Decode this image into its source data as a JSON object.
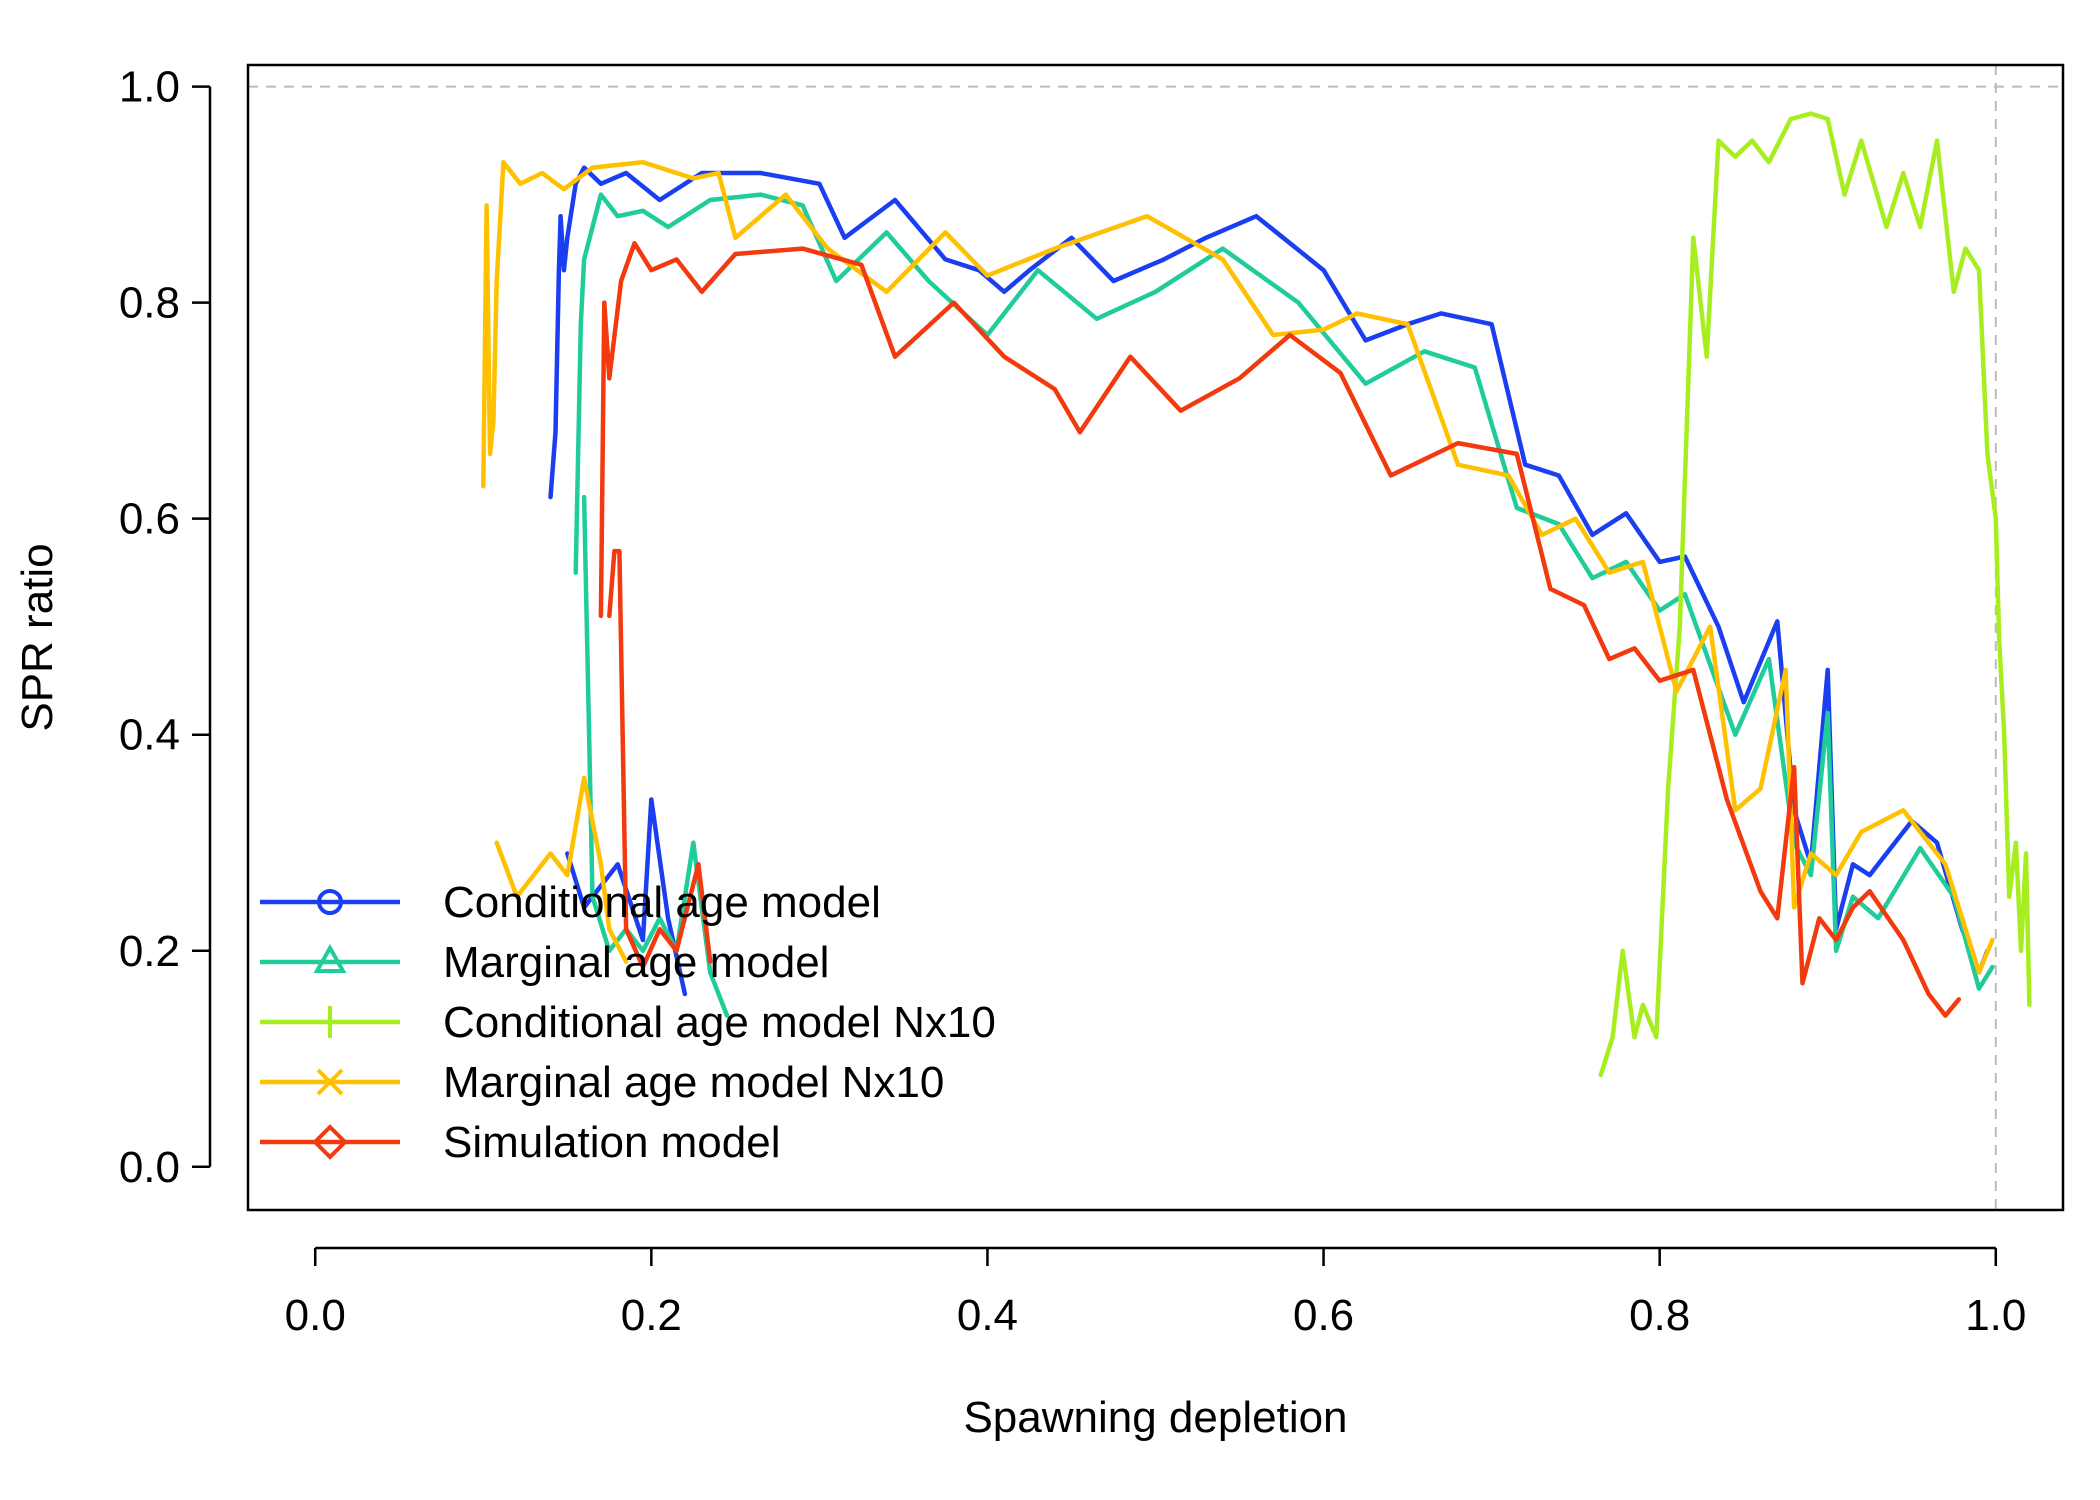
{
  "chart_data": {
    "type": "line",
    "title": "",
    "xlabel": "Spawning depletion",
    "ylabel": "SPR ratio",
    "xlim": [
      -0.04,
      1.04
    ],
    "ylim": [
      -0.04,
      1.02
    ],
    "x_ticks": [
      0.0,
      0.2,
      0.4,
      0.6,
      0.8,
      1.0
    ],
    "x_tick_labels": [
      "0.0",
      "0.2",
      "0.4",
      "0.6",
      "0.8",
      "1.0"
    ],
    "y_ticks": [
      0.0,
      0.2,
      0.4,
      0.6,
      0.8,
      1.0
    ],
    "y_tick_labels": [
      "0.0",
      "0.2",
      "0.4",
      "0.6",
      "0.8",
      "1.0"
    ],
    "reference_lines": {
      "horizontal_y": 1.0,
      "vertical_x": 1.0,
      "style": "dashed",
      "color": "#bbbbbb"
    },
    "legend_position": "bottom-left",
    "series": [
      {
        "name": "Conditional age model",
        "color": "#1a3ef0",
        "marker": "circle",
        "points": [
          [
            0.14,
            0.62
          ],
          [
            0.143,
            0.68
          ],
          [
            0.145,
            0.83
          ],
          [
            0.146,
            0.88
          ],
          [
            0.148,
            0.83
          ],
          [
            0.15,
            0.86
          ],
          [
            0.155,
            0.91
          ],
          [
            0.16,
            0.925
          ],
          [
            0.17,
            0.91
          ],
          [
            0.185,
            0.92
          ],
          [
            0.205,
            0.895
          ],
          [
            0.23,
            0.92
          ],
          [
            0.265,
            0.92
          ],
          [
            0.3,
            0.91
          ],
          [
            0.315,
            0.86
          ],
          [
            0.345,
            0.895
          ],
          [
            0.375,
            0.84
          ],
          [
            0.395,
            0.83
          ],
          [
            0.41,
            0.81
          ],
          [
            0.425,
            0.83
          ],
          [
            0.45,
            0.86
          ],
          [
            0.475,
            0.82
          ],
          [
            0.505,
            0.84
          ],
          [
            0.53,
            0.86
          ],
          [
            0.56,
            0.88
          ],
          [
            0.6,
            0.83
          ],
          [
            0.625,
            0.765
          ],
          [
            0.65,
            0.78
          ],
          [
            0.67,
            0.79
          ],
          [
            0.7,
            0.78
          ],
          [
            0.72,
            0.65
          ],
          [
            0.74,
            0.64
          ],
          [
            0.76,
            0.585
          ],
          [
            0.78,
            0.605
          ],
          [
            0.8,
            0.56
          ],
          [
            0.815,
            0.565
          ],
          [
            0.835,
            0.5
          ],
          [
            0.85,
            0.43
          ],
          [
            0.87,
            0.505
          ],
          [
            0.88,
            0.33
          ],
          [
            0.89,
            0.28
          ],
          [
            0.9,
            0.46
          ],
          [
            0.905,
            0.22
          ],
          [
            0.915,
            0.28
          ],
          [
            0.925,
            0.27
          ],
          [
            0.935,
            0.29
          ],
          [
            0.95,
            0.32
          ],
          [
            0.965,
            0.3
          ],
          [
            0.98,
            0.22
          ],
          [
            0.99,
            0.18
          ],
          [
            0.995,
            0.2
          ]
        ],
        "early_points": [
          [
            0.15,
            0.29
          ],
          [
            0.16,
            0.24
          ],
          [
            0.17,
            0.26
          ],
          [
            0.18,
            0.28
          ],
          [
            0.195,
            0.21
          ],
          [
            0.2,
            0.34
          ],
          [
            0.21,
            0.23
          ],
          [
            0.22,
            0.16
          ]
        ]
      },
      {
        "name": "Marginal age model",
        "color": "#1fcc9a",
        "marker": "triangle",
        "points": [
          [
            0.155,
            0.55
          ],
          [
            0.158,
            0.78
          ],
          [
            0.16,
            0.84
          ],
          [
            0.165,
            0.87
          ],
          [
            0.17,
            0.9
          ],
          [
            0.18,
            0.88
          ],
          [
            0.195,
            0.885
          ],
          [
            0.21,
            0.87
          ],
          [
            0.235,
            0.895
          ],
          [
            0.265,
            0.9
          ],
          [
            0.29,
            0.89
          ],
          [
            0.31,
            0.82
          ],
          [
            0.34,
            0.865
          ],
          [
            0.365,
            0.82
          ],
          [
            0.4,
            0.77
          ],
          [
            0.43,
            0.83
          ],
          [
            0.465,
            0.785
          ],
          [
            0.5,
            0.81
          ],
          [
            0.54,
            0.85
          ],
          [
            0.585,
            0.8
          ],
          [
            0.625,
            0.725
          ],
          [
            0.66,
            0.755
          ],
          [
            0.69,
            0.74
          ],
          [
            0.715,
            0.61
          ],
          [
            0.74,
            0.595
          ],
          [
            0.76,
            0.545
          ],
          [
            0.78,
            0.56
          ],
          [
            0.8,
            0.515
          ],
          [
            0.815,
            0.53
          ],
          [
            0.845,
            0.4
          ],
          [
            0.865,
            0.47
          ],
          [
            0.88,
            0.3
          ],
          [
            0.89,
            0.27
          ],
          [
            0.9,
            0.42
          ],
          [
            0.905,
            0.2
          ],
          [
            0.915,
            0.25
          ],
          [
            0.93,
            0.23
          ],
          [
            0.955,
            0.295
          ],
          [
            0.975,
            0.25
          ],
          [
            0.99,
            0.165
          ],
          [
            0.998,
            0.185
          ]
        ],
        "early_points": [
          [
            0.16,
            0.62
          ],
          [
            0.165,
            0.25
          ],
          [
            0.175,
            0.2
          ],
          [
            0.185,
            0.22
          ],
          [
            0.195,
            0.2
          ],
          [
            0.205,
            0.23
          ],
          [
            0.215,
            0.2
          ],
          [
            0.225,
            0.3
          ],
          [
            0.235,
            0.18
          ],
          [
            0.245,
            0.14
          ]
        ]
      },
      {
        "name": "Conditional age model Nx10",
        "color": "#a6ee20",
        "marker": "plus",
        "points": [
          [
            0.765,
            0.085
          ],
          [
            0.772,
            0.12
          ],
          [
            0.778,
            0.2
          ],
          [
            0.785,
            0.12
          ],
          [
            0.79,
            0.15
          ],
          [
            0.798,
            0.12
          ],
          [
            0.805,
            0.35
          ],
          [
            0.812,
            0.5
          ],
          [
            0.82,
            0.86
          ],
          [
            0.828,
            0.75
          ],
          [
            0.835,
            0.95
          ],
          [
            0.845,
            0.935
          ],
          [
            0.855,
            0.95
          ],
          [
            0.865,
            0.93
          ],
          [
            0.878,
            0.97
          ],
          [
            0.89,
            0.975
          ],
          [
            0.9,
            0.97
          ],
          [
            0.91,
            0.9
          ],
          [
            0.92,
            0.95
          ],
          [
            0.935,
            0.87
          ],
          [
            0.945,
            0.92
          ],
          [
            0.955,
            0.87
          ],
          [
            0.965,
            0.95
          ],
          [
            0.975,
            0.81
          ],
          [
            0.982,
            0.85
          ],
          [
            0.99,
            0.83
          ],
          [
            0.995,
            0.66
          ],
          [
            1.0,
            0.6
          ],
          [
            1.002,
            0.49
          ],
          [
            1.005,
            0.4
          ],
          [
            1.008,
            0.25
          ],
          [
            1.012,
            0.3
          ],
          [
            1.015,
            0.2
          ],
          [
            1.018,
            0.29
          ],
          [
            1.02,
            0.15
          ]
        ]
      },
      {
        "name": "Marginal age model Nx10",
        "color": "#ffc000",
        "marker": "x",
        "points": [
          [
            0.1,
            0.63
          ],
          [
            0.102,
            0.89
          ],
          [
            0.104,
            0.66
          ],
          [
            0.106,
            0.69
          ],
          [
            0.108,
            0.82
          ],
          [
            0.112,
            0.93
          ],
          [
            0.122,
            0.91
          ],
          [
            0.135,
            0.92
          ],
          [
            0.148,
            0.905
          ],
          [
            0.165,
            0.925
          ],
          [
            0.195,
            0.93
          ],
          [
            0.225,
            0.915
          ],
          [
            0.24,
            0.92
          ],
          [
            0.25,
            0.86
          ],
          [
            0.28,
            0.9
          ],
          [
            0.305,
            0.85
          ],
          [
            0.34,
            0.81
          ],
          [
            0.375,
            0.865
          ],
          [
            0.4,
            0.825
          ],
          [
            0.44,
            0.85
          ],
          [
            0.495,
            0.88
          ],
          [
            0.54,
            0.84
          ],
          [
            0.57,
            0.77
          ],
          [
            0.6,
            0.775
          ],
          [
            0.62,
            0.79
          ],
          [
            0.65,
            0.78
          ],
          [
            0.68,
            0.65
          ],
          [
            0.71,
            0.64
          ],
          [
            0.73,
            0.585
          ],
          [
            0.75,
            0.6
          ],
          [
            0.77,
            0.55
          ],
          [
            0.79,
            0.56
          ],
          [
            0.81,
            0.44
          ],
          [
            0.83,
            0.5
          ],
          [
            0.845,
            0.33
          ],
          [
            0.86,
            0.35
          ],
          [
            0.875,
            0.46
          ],
          [
            0.88,
            0.24
          ],
          [
            0.89,
            0.29
          ],
          [
            0.905,
            0.27
          ],
          [
            0.92,
            0.31
          ],
          [
            0.945,
            0.33
          ],
          [
            0.97,
            0.28
          ],
          [
            0.99,
            0.18
          ],
          [
            0.998,
            0.21
          ]
        ],
        "early_points": [
          [
            0.108,
            0.3
          ],
          [
            0.12,
            0.25
          ],
          [
            0.13,
            0.27
          ],
          [
            0.14,
            0.29
          ],
          [
            0.15,
            0.27
          ],
          [
            0.16,
            0.36
          ],
          [
            0.17,
            0.28
          ],
          [
            0.175,
            0.22
          ],
          [
            0.185,
            0.19
          ]
        ]
      },
      {
        "name": "Simulation model",
        "color": "#f23a0e",
        "marker": "diamond",
        "points": [
          [
            0.17,
            0.51
          ],
          [
            0.172,
            0.8
          ],
          [
            0.175,
            0.73
          ],
          [
            0.182,
            0.82
          ],
          [
            0.19,
            0.855
          ],
          [
            0.2,
            0.83
          ],
          [
            0.215,
            0.84
          ],
          [
            0.23,
            0.81
          ],
          [
            0.25,
            0.845
          ],
          [
            0.29,
            0.85
          ],
          [
            0.325,
            0.835
          ],
          [
            0.345,
            0.75
          ],
          [
            0.38,
            0.8
          ],
          [
            0.41,
            0.75
          ],
          [
            0.44,
            0.72
          ],
          [
            0.455,
            0.68
          ],
          [
            0.485,
            0.75
          ],
          [
            0.515,
            0.7
          ],
          [
            0.55,
            0.73
          ],
          [
            0.58,
            0.77
          ],
          [
            0.61,
            0.735
          ],
          [
            0.64,
            0.64
          ],
          [
            0.68,
            0.67
          ],
          [
            0.715,
            0.66
          ],
          [
            0.735,
            0.535
          ],
          [
            0.755,
            0.52
          ],
          [
            0.77,
            0.47
          ],
          [
            0.785,
            0.48
          ],
          [
            0.8,
            0.45
          ],
          [
            0.82,
            0.46
          ],
          [
            0.84,
            0.34
          ],
          [
            0.86,
            0.255
          ],
          [
            0.87,
            0.23
          ],
          [
            0.88,
            0.37
          ],
          [
            0.885,
            0.17
          ],
          [
            0.895,
            0.23
          ],
          [
            0.905,
            0.21
          ],
          [
            0.915,
            0.24
          ],
          [
            0.925,
            0.255
          ],
          [
            0.945,
            0.21
          ],
          [
            0.96,
            0.16
          ],
          [
            0.97,
            0.14
          ],
          [
            0.978,
            0.155
          ]
        ],
        "early_points": [
          [
            0.175,
            0.51
          ],
          [
            0.178,
            0.57
          ],
          [
            0.181,
            0.57
          ],
          [
            0.185,
            0.22
          ],
          [
            0.195,
            0.185
          ],
          [
            0.205,
            0.22
          ],
          [
            0.215,
            0.2
          ],
          [
            0.228,
            0.28
          ],
          [
            0.235,
            0.19
          ]
        ]
      }
    ]
  }
}
